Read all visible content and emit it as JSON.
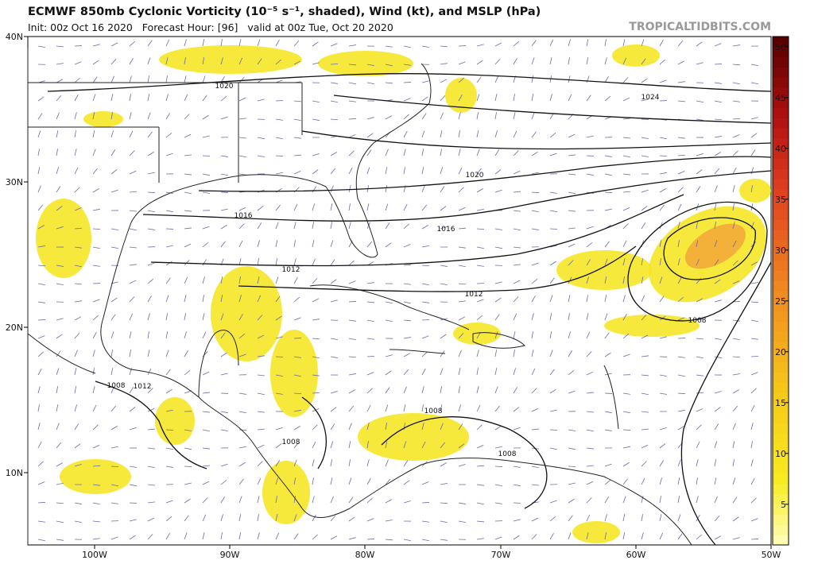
{
  "header": {
    "title": "ECMWF 850mb Cyclonic Vorticity (10⁻⁵ s⁻¹, shaded), Wind (kt), and MSLP (hPa)",
    "subtitle": "Init: 00z Oct 16 2020   Forecast Hour: [96]   valid at 00z Tue, Oct 20 2020",
    "brand": "TROPICALTIDBITS.COM"
  },
  "map": {
    "lat_labels": [
      "40N",
      "30N",
      "20N",
      "10N"
    ],
    "lon_labels": [
      "100W",
      "90W",
      "80W",
      "70W",
      "60W",
      "50W"
    ],
    "isobar_labels": [
      1020,
      1024,
      1020,
      1016,
      1016,
      1012,
      1012,
      1008,
      1008,
      1012,
      1008,
      1008,
      1008
    ]
  },
  "colorbar": {
    "range": [
      1,
      51
    ],
    "ticks": [
      5,
      10,
      15,
      20,
      25,
      30,
      35,
      40,
      45,
      50
    ]
  }
}
